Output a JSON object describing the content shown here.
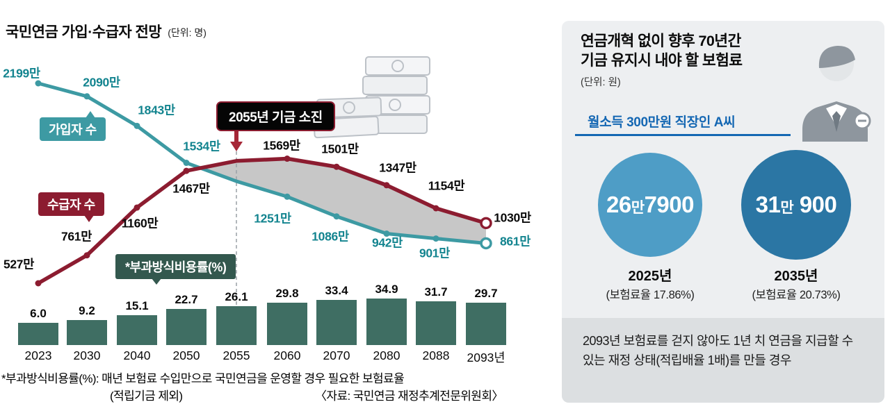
{
  "chart_data": [
    {
      "type": "line",
      "title": "국민연금 가입·수급자 전망",
      "unit_label": "(단위: 명)",
      "x": [
        "2023",
        "2030",
        "2040",
        "2050",
        "2055",
        "2060",
        "2070",
        "2080",
        "2088",
        "2093"
      ],
      "annotation": "2055년 기금 소진",
      "grid": false,
      "legend_position": "inline-bubbles",
      "series": [
        {
          "name": "가입자 수",
          "color": "#3d9aa3",
          "values": [
            2199,
            2090,
            1843,
            1534,
            1380,
            1251,
            1086,
            942,
            901,
            861
          ],
          "labels": [
            "2199만",
            "2090만",
            "1843만",
            "1534만",
            "",
            "1251만",
            "1086만",
            "942만",
            "901만",
            "861만"
          ]
        },
        {
          "name": "수급자 수",
          "color": "#8c1c30",
          "values": [
            527,
            761,
            1160,
            1467,
            1550,
            1569,
            1501,
            1347,
            1154,
            1030
          ],
          "labels": [
            "527만",
            "761만",
            "1160만",
            "1467만",
            "",
            "1569만",
            "1501만",
            "1347만",
            "1154만",
            "1030만"
          ]
        }
      ]
    },
    {
      "type": "bar",
      "title": "*부과방식비용률(%)",
      "categories": [
        "2023",
        "2030",
        "2040",
        "2050",
        "2055",
        "2060",
        "2070",
        "2080",
        "2088",
        "2093년"
      ],
      "values": [
        6.0,
        9.2,
        15.1,
        22.7,
        26.1,
        29.8,
        33.4,
        34.9,
        31.7,
        29.7
      ],
      "labels": [
        "6.0",
        "9.2",
        "15.1",
        "22.7",
        "26.1",
        "29.8",
        "33.4",
        "34.9",
        "31.7",
        "29.7"
      ],
      "bar_color": "#3f6e63"
    }
  ],
  "left": {
    "footnote": "*부과방식비용률(%): 매년 보험료 수입만으로 국민연금을 운영할 경우 필요한 보험료율",
    "footnote2": "(적립기금 제외)",
    "source": "〈자료: 국민연금 재정추계전문위원회〉"
  },
  "right_panel": {
    "title_line1": "연금개혁 없이 향후 70년간",
    "title_line2": "기금 유지시 내야 할 보험료",
    "unit_label": "(단위: 원)",
    "subject": "월소득 300만원 직장인 A씨",
    "accent_color": "#1467b3",
    "circles": [
      {
        "n1": "26",
        "u": "만",
        "n2": "7900",
        "year": "2025년",
        "rate": "(보험료율 17.86%)",
        "color": "#4e9dc6"
      },
      {
        "n1": "31",
        "u": "만",
        "n2": " 900",
        "year": "2035년",
        "rate": "(보험료율 20.73%)",
        "color": "#2b76a4"
      }
    ],
    "bottom_note": "2093년 보험료를 걷지 않아도 1년 치 연금을 지급할 수 있는 재정 상태(적립배율 1배)를 만들 경우"
  }
}
